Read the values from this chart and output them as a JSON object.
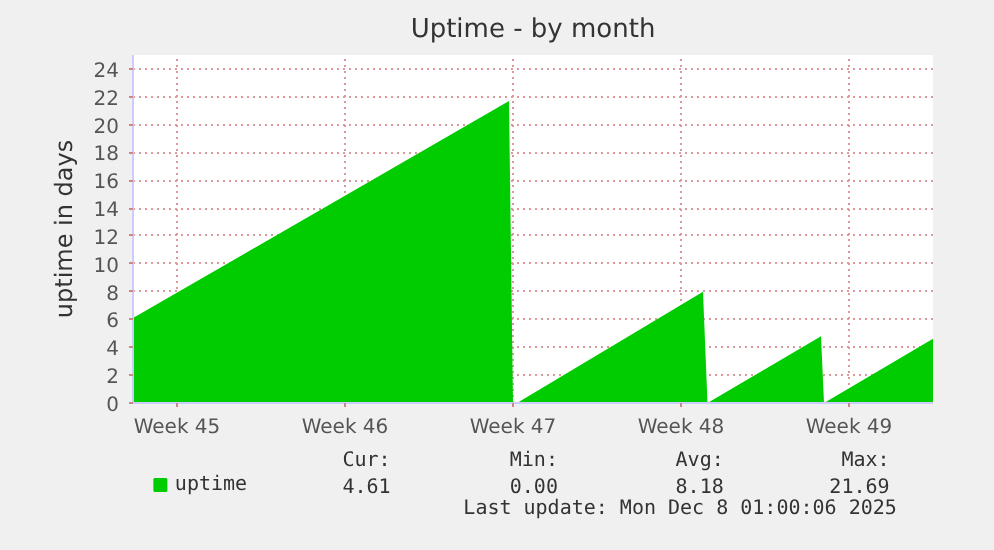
{
  "chart_data": {
    "type": "area",
    "title": "Uptime - by month",
    "ylabel": "uptime in days",
    "x": [
      "2025-11-04T16:00",
      "2025-11-20T08:00",
      "2025-11-20T12:00",
      "2025-11-20T16:00",
      "2025-11-28T10:00",
      "2025-11-28T14:30",
      "2025-12-03T08:00",
      "2025-12-03T11:00",
      "2025-12-08T00:00"
    ],
    "series": [
      {
        "name": "uptime",
        "color": "#00cc00",
        "values": [
          6.1,
          21.69,
          0,
          0,
          8.0,
          0,
          4.8,
          0,
          4.61
        ]
      }
    ],
    "xlim": [
      "2025-11-04T16:00",
      "2025-12-08T00:00"
    ],
    "xticks": [
      {
        "value": "2025-11-06T12:00",
        "label": "Week 45"
      },
      {
        "value": "2025-11-13T12:00",
        "label": "Week 46"
      },
      {
        "value": "2025-11-20T12:00",
        "label": "Week 47"
      },
      {
        "value": "2025-11-27T12:00",
        "label": "Week 48"
      },
      {
        "value": "2025-12-04T12:00",
        "label": "Week 49"
      }
    ],
    "ylim": [
      0,
      25
    ],
    "yticks": [
      0,
      2,
      4,
      6,
      8,
      10,
      12,
      14,
      16,
      18,
      20,
      22,
      24
    ],
    "grid": true,
    "legend": "bottom",
    "annotations": [
      "Cur:",
      "Min:",
      "Avg:",
      "Max:",
      "4.61",
      "0.00",
      "8.18",
      "21.69",
      "Last update: Mon Dec  8 01:00:06 2025"
    ]
  }
}
